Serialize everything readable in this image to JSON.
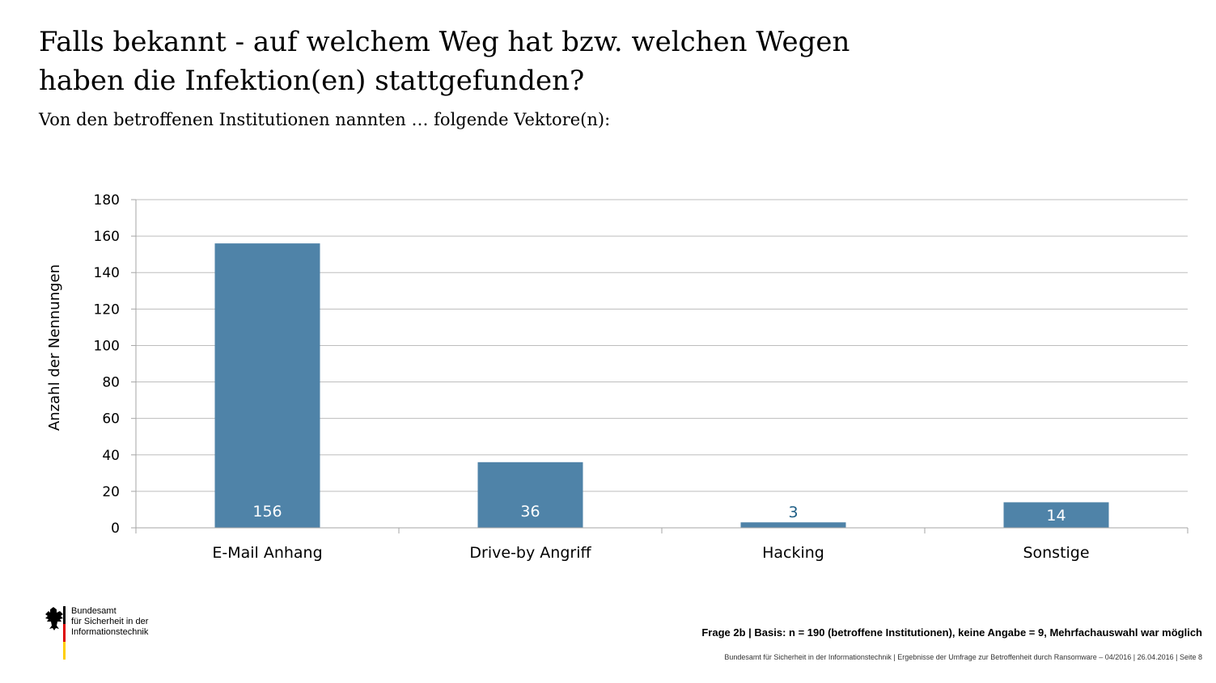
{
  "header": {
    "title": "Falls bekannt - auf welchem Weg hat bzw. welchen Wegen haben die Infektion(en) stattgefunden?",
    "subtitle": "Von den betroffenen Institutionen nannten … folgende Vektore(n):"
  },
  "chart_data": {
    "type": "bar",
    "categories": [
      "E-Mail Anhang",
      "Drive-by Angriff",
      "Hacking",
      "Sonstige"
    ],
    "values": [
      156,
      36,
      3,
      14
    ],
    "data_labels": [
      "156",
      "36",
      "3",
      "14"
    ],
    "ylabel": "Anzahl der Nennungen",
    "ylim": [
      0,
      180
    ],
    "yticks": [
      0,
      20,
      40,
      60,
      80,
      100,
      120,
      140,
      160,
      180
    ],
    "grid": true,
    "legend": "none",
    "colors": {
      "bar": "#4f83a8",
      "label_inside": "#ffffff",
      "label_outside": "#1f5f86",
      "grid": "#bdbdbd",
      "axis": "#a6a6a6"
    }
  },
  "logo": {
    "text": "Bundesamt\nfür Sicherheit in der\nInformationstechnik"
  },
  "note": "Frage 2b | Basis: n = 190 (betroffene Institutionen), keine Angabe = 9, Mehrfachauswahl war möglich",
  "footer": "Bundesamt für Sicherheit in der Informationstechnik | Ergebnisse der Umfrage zur Betroffenheit durch Ransomware – 04/2016 | 26.04.2016 | Seite 8"
}
